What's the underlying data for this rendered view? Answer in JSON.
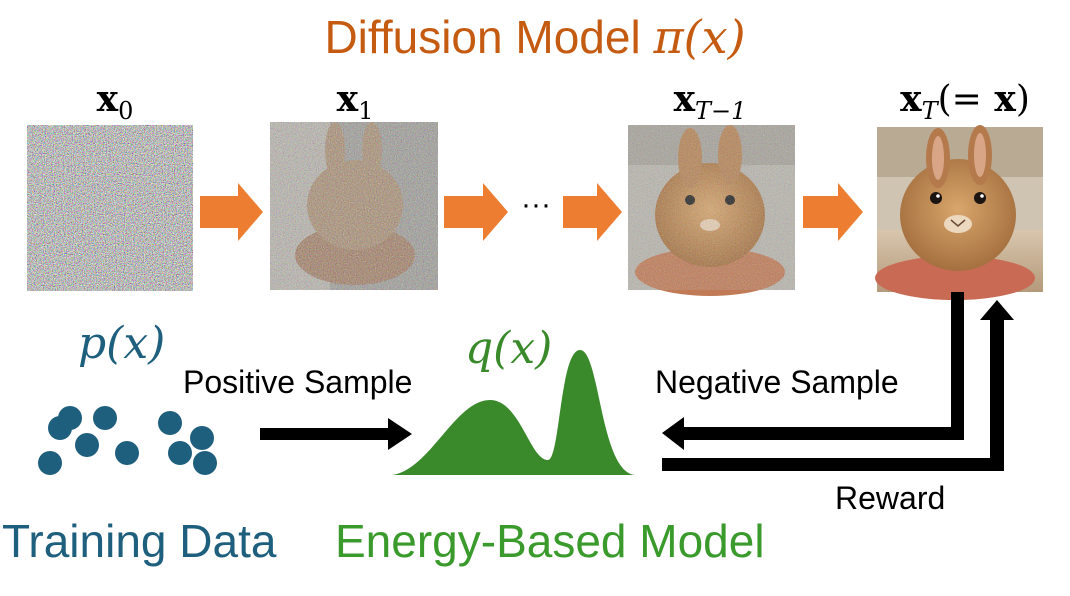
{
  "diagram": {
    "title_text": "Diffusion Model ",
    "title_math": "π(x)",
    "steps": [
      {
        "label": "x0"
      },
      {
        "label": "x1"
      },
      {
        "label": "xT−1"
      },
      {
        "label": "xT(= x)"
      }
    ],
    "ellipsis": "···",
    "p_label": "p(x)",
    "q_label": "q(x)",
    "positive_sample": "Positive Sample",
    "negative_sample": "Negative Sample",
    "reward": "Reward",
    "training_data": "Training Data",
    "energy_based_model": "Energy-Based Model",
    "colors": {
      "orange": "#c55a11",
      "arrow_orange": "#ed7d31",
      "blue": "#1f5f7e",
      "green": "#3a8a2c"
    }
  }
}
